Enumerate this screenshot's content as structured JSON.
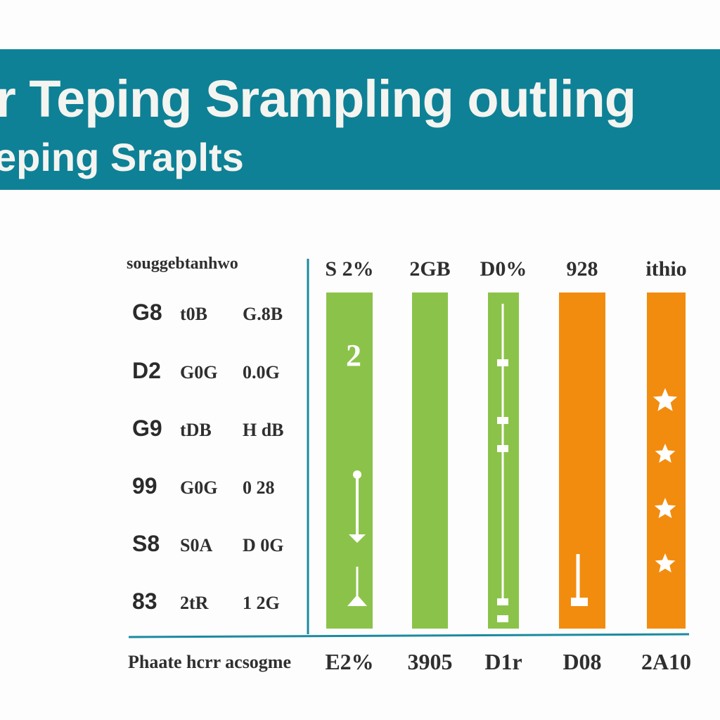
{
  "banner": {
    "title_line1": "r Teping Srampling outling",
    "title_line2": "eping Sraplts"
  },
  "chart_data": {
    "type": "bar",
    "table_header": "souggebtanhwo",
    "table_rows": [
      [
        "G8",
        "t0B",
        "G.8B"
      ],
      [
        "D2",
        "G0G",
        "0.0G"
      ],
      [
        "G9",
        "tDB",
        "H dB"
      ],
      [
        "99",
        "G0G",
        "0 28"
      ],
      [
        "S8",
        "S0A",
        "D 0G"
      ],
      [
        "83",
        "2tR",
        "1 2G"
      ]
    ],
    "categories": [
      "Phaate hcrr acsogme"
    ],
    "series": [
      {
        "name": "S 2%",
        "values": [
          100
        ],
        "color": "#8bc34a",
        "bottom_label": "E2%"
      },
      {
        "name": "2GB",
        "values": [
          100
        ],
        "color": "#8bc34a",
        "bottom_label": "3905"
      },
      {
        "name": "D0%",
        "values": [
          100
        ],
        "color": "#8bc34a",
        "bottom_label": "D1r"
      },
      {
        "name": "928",
        "values": [
          100
        ],
        "color": "#f28c0f",
        "bottom_label": "D08"
      },
      {
        "name": "ithio",
        "values": [
          100
        ],
        "color": "#f28c0f",
        "bottom_label": "2A10"
      }
    ],
    "ylim": [
      0,
      100
    ],
    "grid": false,
    "annotations": [
      "2"
    ]
  },
  "colors": {
    "banner": "#0e8196",
    "axis": "#1a8aa0",
    "green": "#8bc34a",
    "orange": "#f28c0f"
  }
}
